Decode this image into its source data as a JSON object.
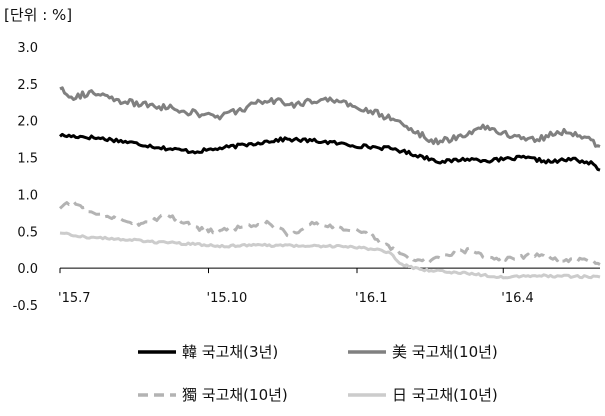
{
  "chart_data": {
    "type": "line",
    "unit_label": "[단위 : %]",
    "ylim": [
      -0.5,
      3.0
    ],
    "yticks": [
      "3.0",
      "2.5",
      "2.0",
      "1.5",
      "1.0",
      "0.5",
      "0.0",
      "-0.5"
    ],
    "x_index_range": [
      0,
      240
    ],
    "xticks": [
      {
        "label": "'15.7",
        "index": 0
      },
      {
        "label": "'15.10",
        "index": 66
      },
      {
        "label": "'16.1",
        "index": 132
      },
      {
        "label": "'16.4",
        "index": 197
      }
    ],
    "grid": false,
    "legend_position": "bottom",
    "series": [
      {
        "name": "韓 국고채(3년)",
        "color": "#000000",
        "style": "solid",
        "anchors": [
          [
            0,
            1.8
          ],
          [
            12,
            1.78
          ],
          [
            24,
            1.74
          ],
          [
            36,
            1.68
          ],
          [
            48,
            1.62
          ],
          [
            60,
            1.58
          ],
          [
            70,
            1.62
          ],
          [
            84,
            1.68
          ],
          [
            92,
            1.72
          ],
          [
            100,
            1.75
          ],
          [
            116,
            1.72
          ],
          [
            132,
            1.66
          ],
          [
            148,
            1.62
          ],
          [
            160,
            1.52
          ],
          [
            170,
            1.44
          ],
          [
            180,
            1.48
          ],
          [
            192,
            1.46
          ],
          [
            206,
            1.5
          ],
          [
            218,
            1.44
          ],
          [
            228,
            1.48
          ],
          [
            236,
            1.42
          ],
          [
            240,
            1.33
          ]
        ]
      },
      {
        "name": "美 국고채(10년)",
        "color": "#808080",
        "style": "solid",
        "anchors": [
          [
            0,
            2.45
          ],
          [
            6,
            2.32
          ],
          [
            14,
            2.38
          ],
          [
            24,
            2.28
          ],
          [
            36,
            2.22
          ],
          [
            48,
            2.18
          ],
          [
            60,
            2.1
          ],
          [
            70,
            2.05
          ],
          [
            80,
            2.15
          ],
          [
            92,
            2.28
          ],
          [
            104,
            2.22
          ],
          [
            118,
            2.3
          ],
          [
            132,
            2.18
          ],
          [
            146,
            2.05
          ],
          [
            156,
            1.9
          ],
          [
            162,
            1.78
          ],
          [
            168,
            1.7
          ],
          [
            178,
            1.8
          ],
          [
            188,
            1.92
          ],
          [
            200,
            1.8
          ],
          [
            212,
            1.75
          ],
          [
            222,
            1.85
          ],
          [
            232,
            1.8
          ],
          [
            240,
            1.65
          ]
        ]
      },
      {
        "name": "獨 국고채(10년)",
        "color": "#b3b3b3",
        "style": "dashed",
        "anchors": [
          [
            0,
            0.82
          ],
          [
            6,
            0.9
          ],
          [
            14,
            0.75
          ],
          [
            24,
            0.68
          ],
          [
            36,
            0.6
          ],
          [
            48,
            0.72
          ],
          [
            60,
            0.55
          ],
          [
            70,
            0.5
          ],
          [
            80,
            0.55
          ],
          [
            92,
            0.62
          ],
          [
            102,
            0.45
          ],
          [
            112,
            0.6
          ],
          [
            124,
            0.55
          ],
          [
            136,
            0.48
          ],
          [
            146,
            0.3
          ],
          [
            154,
            0.15
          ],
          [
            164,
            0.1
          ],
          [
            172,
            0.18
          ],
          [
            182,
            0.25
          ],
          [
            192,
            0.12
          ],
          [
            204,
            0.15
          ],
          [
            214,
            0.18
          ],
          [
            224,
            0.1
          ],
          [
            232,
            0.12
          ],
          [
            240,
            0.05
          ]
        ]
      },
      {
        "name": "日 국고채(10년)",
        "color": "#cccccc",
        "style": "solid",
        "anchors": [
          [
            0,
            0.48
          ],
          [
            12,
            0.42
          ],
          [
            24,
            0.4
          ],
          [
            40,
            0.36
          ],
          [
            56,
            0.33
          ],
          [
            72,
            0.3
          ],
          [
            90,
            0.31
          ],
          [
            108,
            0.3
          ],
          [
            124,
            0.3
          ],
          [
            136,
            0.27
          ],
          [
            146,
            0.22
          ],
          [
            152,
            0.05
          ],
          [
            160,
            -0.02
          ],
          [
            172,
            -0.05
          ],
          [
            184,
            -0.08
          ],
          [
            196,
            -0.12
          ],
          [
            210,
            -0.1
          ],
          [
            224,
            -0.11
          ],
          [
            240,
            -0.12
          ]
        ]
      }
    ]
  }
}
